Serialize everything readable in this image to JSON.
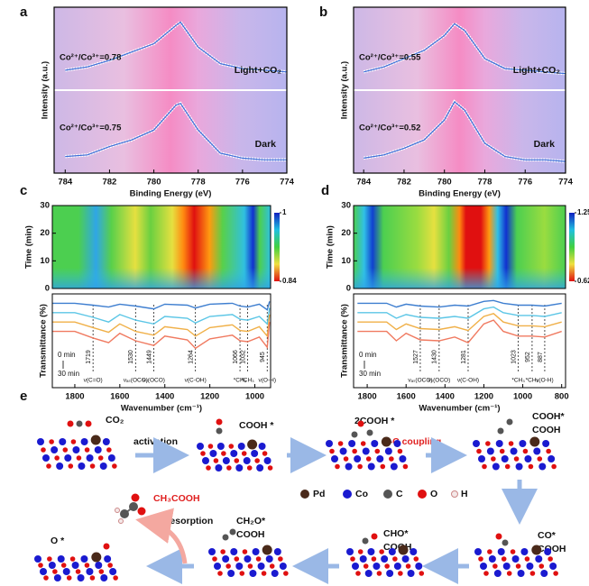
{
  "chart_data": [
    {
      "type": "line",
      "label": "a",
      "xlabel": "Binding Energy (eV)",
      "ylabel": "Intensity (a.u.)",
      "xlim": [
        784.5,
        774
      ],
      "xticks": [
        784,
        782,
        780,
        778,
        776,
        774
      ],
      "ylim": [
        0,
        10
      ],
      "x": [
        784,
        783,
        782,
        781,
        780,
        779,
        778.8,
        778,
        777,
        776,
        775,
        774
      ],
      "series": [
        {
          "color": "#555555",
          "values": [
            6.2,
            6.4,
            6.8,
            7.3,
            7.8,
            8.9,
            9.1,
            7.6,
            6.6,
            6.3,
            6.2,
            6.1
          ]
        },
        {
          "color": "#555555",
          "values": [
            1.0,
            1.1,
            1.6,
            2.0,
            2.6,
            4.1,
            4.2,
            2.6,
            1.2,
            0.9,
            0.8,
            0.8
          ]
        }
      ],
      "ratio_labels": [
        "Co²⁺/Co³⁺=0.78",
        "Co²⁺/Co³⁺=0.75"
      ],
      "condition_labels": [
        "Light+CO₂",
        "Dark"
      ]
    },
    {
      "type": "line",
      "label": "b",
      "xlabel": "Binding Energy (eV)",
      "ylabel": "Intensity (a.u.)",
      "xlim": [
        784.5,
        774
      ],
      "xticks": [
        784,
        782,
        780,
        778,
        776,
        774
      ],
      "ylim": [
        0,
        10
      ],
      "x": [
        784,
        783,
        782,
        781,
        780,
        779.5,
        779,
        778,
        777,
        776,
        775,
        774
      ],
      "series": [
        {
          "color": "#555555",
          "values": [
            6.1,
            6.4,
            6.9,
            7.4,
            8.3,
            9.0,
            8.6,
            6.9,
            6.3,
            6.2,
            6.1,
            6.0
          ]
        },
        {
          "color": "#555555",
          "values": [
            0.9,
            1.1,
            1.5,
            2.0,
            3.2,
            4.3,
            3.8,
            1.8,
            1.0,
            0.8,
            0.8,
            0.7
          ]
        }
      ],
      "ratio_labels": [
        "Co²⁺/Co³⁺=0.55",
        "Co²⁺/Co³⁺=0.52"
      ],
      "condition_labels": [
        "Light+CO₂",
        "Dark"
      ]
    },
    {
      "type": "spectra",
      "label": "c",
      "xlabel": "Wavenumber (cm⁻¹)",
      "ylabel": "Transmittance (%)",
      "time_label": "Time (min)",
      "time_ylim": [
        0,
        30
      ],
      "time_yticks": [
        0,
        10,
        20,
        30
      ],
      "colorbar_ticks": [
        0.84,
        1
      ],
      "xlim": [
        1900,
        930
      ],
      "xticks": [
        1800,
        1600,
        1400,
        1200,
        1000
      ],
      "ylim": [
        0,
        10
      ],
      "x": [
        1900,
        1800,
        1719,
        1650,
        1600,
        1530,
        1449,
        1400,
        1300,
        1264,
        1200,
        1100,
        1066,
        1032,
        980,
        945,
        935
      ],
      "series": [
        {
          "color": "#3f7fd0",
          "values": [
            9,
            9,
            8.8,
            8.6,
            8.9,
            8.7,
            8.4,
            8.9,
            8.8,
            8.5,
            8.9,
            9,
            8.7,
            8.6,
            8.9,
            8.3,
            9.2
          ]
        },
        {
          "color": "#5cc6e6",
          "values": [
            8,
            8,
            7.5,
            7,
            7.8,
            7.2,
            6.8,
            7.6,
            7.4,
            6.9,
            7.6,
            7.8,
            7.3,
            7.2,
            7.6,
            6.8,
            8.5
          ]
        },
        {
          "color": "#f0b048",
          "values": [
            7,
            7,
            6.4,
            5.9,
            6.8,
            6,
            5.6,
            6.5,
            6.2,
            5.5,
            6.4,
            6.7,
            6.1,
            6,
            6.5,
            5.5,
            7.8
          ]
        },
        {
          "color": "#f07a60",
          "values": [
            6,
            6,
            5.3,
            4.8,
            5.8,
            5,
            4.5,
            5.5,
            5.1,
            4.2,
            5.2,
            5.6,
            5,
            4.9,
            5.4,
            4.3,
            7
          ]
        }
      ],
      "peaks": [
        {
          "x": 1719,
          "mode": "ν(C=O)"
        },
        {
          "x": 1530,
          "mode": "νₐₛ(OCO)"
        },
        {
          "x": 1449,
          "mode": "νₛ(OCO)"
        },
        {
          "x": 1264,
          "mode": "ν(C-OH)"
        },
        {
          "x": 1066,
          "mode": "*CH₃"
        },
        {
          "x": 1032,
          "mode": "*CH₃"
        },
        {
          "x": 945,
          "mode": "ν(O-H)"
        }
      ],
      "time_markers": [
        "0 min",
        "30 min"
      ]
    },
    {
      "type": "spectra",
      "label": "d",
      "xlabel": "Wavenumber (cm⁻¹)",
      "ylabel": "Transmittance (%)",
      "time_label": "Time (min)",
      "time_ylim": [
        0,
        30
      ],
      "time_yticks": [
        0,
        10,
        20,
        30
      ],
      "colorbar_ticks": [
        0.62,
        1.25
      ],
      "xlim": [
        1870,
        780
      ],
      "xticks": [
        1800,
        1600,
        1400,
        1200,
        1000,
        800
      ],
      "ylim": [
        0,
        10
      ],
      "x": [
        1850,
        1800,
        1700,
        1650,
        1600,
        1527,
        1430,
        1350,
        1281,
        1200,
        1150,
        1100,
        1023,
        952,
        887,
        800
      ],
      "series": [
        {
          "color": "#3f7fd0",
          "values": [
            9,
            9,
            9,
            8.6,
            8.9,
            8.7,
            8.6,
            8.8,
            8.7,
            9.2,
            9.3,
            9,
            8.8,
            8.8,
            8.7,
            9
          ]
        },
        {
          "color": "#5cc6e6",
          "values": [
            8,
            8,
            8,
            7.4,
            7.8,
            7.5,
            7.4,
            7.6,
            7.4,
            8.4,
            8.6,
            8,
            7.7,
            7.7,
            7.6,
            8
          ]
        },
        {
          "color": "#f0b048",
          "values": [
            7,
            7,
            7,
            6.2,
            6.8,
            6.3,
            6.2,
            6.5,
            6.1,
            7.6,
            7.9,
            7,
            6.6,
            6.6,
            6.5,
            7
          ]
        },
        {
          "color": "#f07a60",
          "values": [
            6,
            6,
            6,
            5,
            5.8,
            5.1,
            5,
            5.4,
            4.8,
            6.8,
            7.2,
            6,
            5.5,
            5.5,
            5.4,
            6
          ]
        }
      ],
      "peaks": [
        {
          "x": 1527,
          "mode": "νₐₛ(OCO)"
        },
        {
          "x": 1430,
          "mode": "νₛ(OCO)"
        },
        {
          "x": 1281,
          "mode": "ν(C-OH)"
        },
        {
          "x": 1023,
          "mode": "*CH₃"
        },
        {
          "x": 952,
          "mode": "*CH₃"
        },
        {
          "x": 887,
          "mode": "ν(O-H)"
        }
      ],
      "time_markers": [
        "0 min",
        "30 min"
      ]
    }
  ],
  "diagram": {
    "label": "e",
    "states": [
      {
        "lines": [
          "CO₂"
        ]
      },
      {
        "lines": [
          "COOH *"
        ]
      },
      {
        "lines": [
          "2COOH *"
        ]
      },
      {
        "lines": [
          "COOH*",
          "COOH"
        ]
      },
      {
        "lines": [
          "CO*",
          "COOH"
        ]
      },
      {
        "lines": [
          "CHO*",
          "COOH"
        ]
      },
      {
        "lines": [
          "CH₂O*",
          "COOH"
        ]
      },
      {
        "lines": [
          "O *"
        ]
      }
    ],
    "steps": [
      "activation",
      "C-C coupling",
      "desorption"
    ],
    "product": "CH₃COOH",
    "legend": [
      "Pd",
      "Co",
      "C",
      "O",
      "H"
    ]
  }
}
